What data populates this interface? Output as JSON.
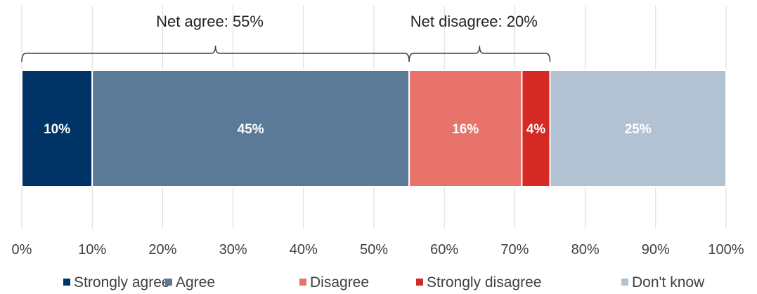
{
  "chart_data": {
    "type": "bar",
    "orientation": "horizontal",
    "stacked": true,
    "xlim": [
      0,
      100
    ],
    "x_ticks": [
      "0%",
      "10%",
      "20%",
      "30%",
      "40%",
      "50%",
      "60%",
      "70%",
      "80%",
      "90%",
      "100%"
    ],
    "grid": true,
    "legend_position": "bottom",
    "series": [
      {
        "name": "Strongly agree",
        "value": 10,
        "label": "10%",
        "color": "#003366"
      },
      {
        "name": "Agree",
        "value": 45,
        "label": "45%",
        "color": "#5a7a98"
      },
      {
        "name": "Disagree",
        "value": 16,
        "label": "16%",
        "color": "#e8736b"
      },
      {
        "name": "Strongly disagree",
        "value": 4,
        "label": "4%",
        "color": "#d42a23"
      },
      {
        "name": "Don't know",
        "value": 25,
        "label": "25%",
        "color": "#b2c2d3"
      }
    ],
    "annotations": [
      {
        "text": "Net agree: 55%",
        "from": 0,
        "to": 55
      },
      {
        "text": "Net disagree: 20%",
        "from": 55,
        "to": 75
      }
    ]
  }
}
